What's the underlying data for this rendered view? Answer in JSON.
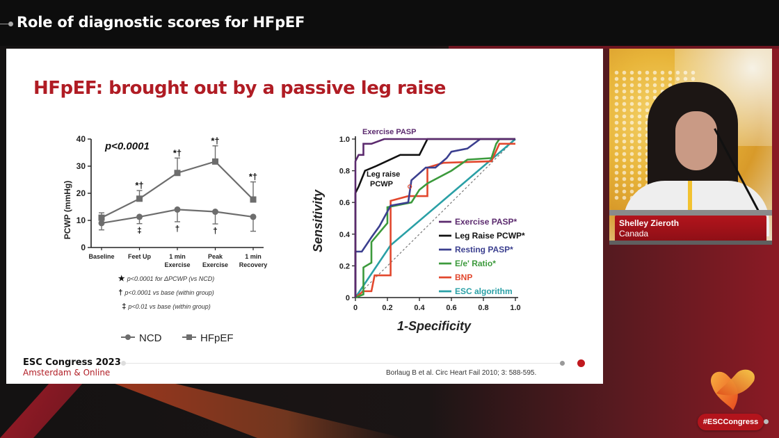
{
  "header": {
    "title": "Role of diagnostic scores for HFpEF"
  },
  "slide": {
    "title": "HFpEF: brought out by a passive leg raise",
    "footer_title": "ESC Congress 2023",
    "footer_subtitle": "Amsterdam & Online",
    "citation": "Borlaug B et al.  Circ Heart Fail 2010; 3: 588-595.",
    "colors": {
      "title": "#b01c24",
      "progress_active": "#c0191f"
    }
  },
  "speaker": {
    "name": "Shelley Zieroth",
    "country": "Canada"
  },
  "branding": {
    "hashtag": "#ESCCongress"
  },
  "chart_data": [
    {
      "type": "line",
      "title": "",
      "annotation": "p<0.0001",
      "xlabel": "",
      "ylabel": "PCWP (mmHg)",
      "ylim": [
        0,
        40
      ],
      "yticks": [
        0,
        10,
        20,
        30,
        40
      ],
      "categories": [
        "Baseline",
        "Feet Up",
        "1 min Exercise",
        "Peak Exercise",
        "1 min Recovery"
      ],
      "category_lines": [
        [
          "Baseline"
        ],
        [
          "Feet Up"
        ],
        [
          "1 min",
          "Exercise"
        ],
        [
          "Peak",
          "Exercise"
        ],
        [
          "1 min",
          "Recovery"
        ]
      ],
      "series": [
        {
          "name": "NCD",
          "marker": "circle",
          "values": [
            9,
            11.3,
            14,
            13.2,
            11.3
          ],
          "error_lower": [
            6.5,
            8.8,
            9.5,
            8.7,
            6
          ],
          "markers_below": [
            "",
            "‡",
            "†",
            "†",
            ""
          ]
        },
        {
          "name": "HFpEF",
          "marker": "square",
          "values": [
            11,
            18,
            27.5,
            31.7,
            17.7
          ],
          "error_upper": [
            12.8,
            21,
            33,
            37.5,
            24.2
          ],
          "markers_above": [
            "",
            "*†",
            "*†",
            "*†",
            "*†"
          ]
        }
      ],
      "footnotes": [
        {
          "symbol": "★",
          "text": "p<0.0001 for ΔPCWP (vs NCD)"
        },
        {
          "symbol": "†",
          "text": "p<0.0001 vs base (within group)"
        },
        {
          "symbol": "‡",
          "text": "p<0.01 vs base (within group)"
        }
      ],
      "legend": [
        "NCD",
        "HFpEF"
      ],
      "legend_position": "bottom"
    },
    {
      "type": "line",
      "title": "",
      "xlabel": "1-Specificity",
      "ylabel": "Sensitivity",
      "xlim": [
        0,
        1
      ],
      "ylim": [
        0,
        1
      ],
      "xticks": [
        "0",
        "0.2",
        "0.4",
        "0.6",
        "0.8",
        "1.0"
      ],
      "yticks": [
        "0",
        "0.2",
        "0.4",
        "0.6",
        "0.8",
        "1.0"
      ],
      "annotations": [
        "Exercise PASP",
        "Leg raise PCWP"
      ],
      "legend_position": "lower right",
      "series": [
        {
          "name": "Exercise PASP*",
          "color": "#5b2a6e",
          "x": [
            0,
            0,
            0.02,
            0.05,
            0.05,
            0.1,
            0.18,
            1.0
          ],
          "y": [
            0,
            0.86,
            0.9,
            0.9,
            0.97,
            0.97,
            1.0,
            1.0
          ]
        },
        {
          "name": "Leg Raise PCWP*",
          "color": "#111111",
          "x": [
            0,
            0,
            0.02,
            0.06,
            0.13,
            0.28,
            0.4,
            0.45,
            1.0
          ],
          "y": [
            0,
            0.66,
            0.7,
            0.8,
            0.83,
            0.9,
            0.9,
            1.0,
            1.0
          ]
        },
        {
          "name": "Resting PASP*",
          "color": "#3b3f8f",
          "x": [
            0,
            0,
            0.04,
            0.1,
            0.15,
            0.22,
            0.33,
            0.35,
            0.44,
            0.5,
            0.57,
            0.6,
            0.7,
            0.78,
            0.8,
            1.0
          ],
          "y": [
            0,
            0.29,
            0.29,
            0.38,
            0.45,
            0.58,
            0.6,
            0.74,
            0.82,
            0.82,
            0.88,
            0.92,
            0.94,
            1.0,
            1.0,
            1.0
          ]
        },
        {
          "name": "E/e' Ratio*",
          "color": "#3c9a3c",
          "x": [
            0,
            0.05,
            0.05,
            0.1,
            0.1,
            0.2,
            0.2,
            0.35,
            0.4,
            0.45,
            0.6,
            0.7,
            0.85,
            0.88,
            0.9,
            1.0
          ],
          "y": [
            0,
            0.02,
            0.19,
            0.22,
            0.35,
            0.47,
            0.57,
            0.6,
            0.68,
            0.72,
            0.8,
            0.87,
            0.88,
            0.97,
            1.0,
            1.0
          ]
        },
        {
          "name": "BNP",
          "color": "#e2472d",
          "x": [
            0,
            0.05,
            0.1,
            0.12,
            0.22,
            0.22,
            0.33,
            0.45,
            0.45,
            0.55,
            0.85,
            0.9,
            1.0
          ],
          "y": [
            0,
            0.04,
            0.04,
            0.14,
            0.14,
            0.61,
            0.64,
            0.64,
            0.82,
            0.85,
            0.86,
            0.97,
            0.97
          ]
        },
        {
          "name": "ESC algorithm",
          "color": "#2aa0a6",
          "x": [
            0,
            0.22,
            1.0
          ],
          "y": [
            0,
            0.33,
            1.0
          ]
        },
        {
          "name": "reference",
          "color": "#777777",
          "dashed": true,
          "x": [
            0,
            1
          ],
          "y": [
            0,
            1
          ]
        }
      ]
    }
  ]
}
